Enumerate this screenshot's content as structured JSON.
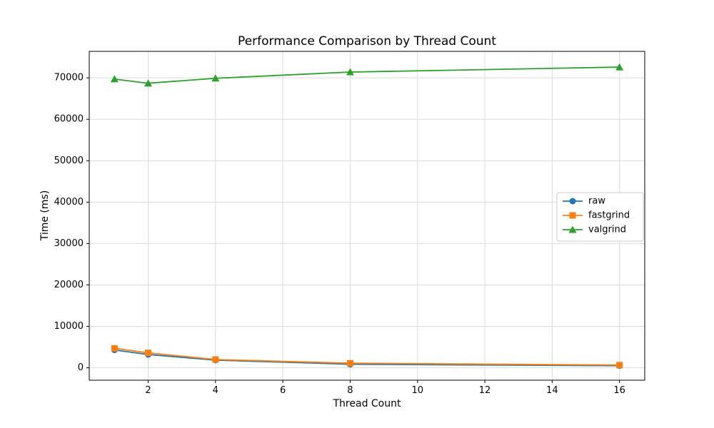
{
  "chart_data": {
    "type": "line",
    "title": "Performance Comparison by Thread Count",
    "xlabel": "Thread Count",
    "ylabel": "Time (ms)",
    "x": [
      1,
      2,
      4,
      8,
      16
    ],
    "series": [
      {
        "name": "raw",
        "color": "#1f77b4",
        "marker": "circle",
        "values": [
          4300,
          3200,
          1850,
          850,
          500
        ]
      },
      {
        "name": "fastgrind",
        "color": "#ff7f0e",
        "marker": "square",
        "values": [
          4700,
          3600,
          2000,
          1100,
          650
        ]
      },
      {
        "name": "valgrind",
        "color": "#2ca02c",
        "marker": "triangle",
        "values": [
          69700,
          68700,
          69900,
          71400,
          72600
        ]
      }
    ],
    "xticks": [
      2,
      4,
      6,
      8,
      10,
      12,
      14,
      16
    ],
    "yticks": [
      0,
      10000,
      20000,
      30000,
      40000,
      50000,
      60000,
      70000
    ],
    "xlim": [
      0.25,
      16.75
    ],
    "ylim": [
      -3000,
      76400
    ],
    "grid": true,
    "legend_position": "center right",
    "legend": [
      "raw",
      "fastgrind",
      "valgrind"
    ],
    "colors": {
      "background": "#ffffff",
      "text": "#000000",
      "grid": "#dcdcdc",
      "spine": "#000000",
      "legend_border": "#cccccc",
      "legend_background": "#ffffff"
    }
  }
}
